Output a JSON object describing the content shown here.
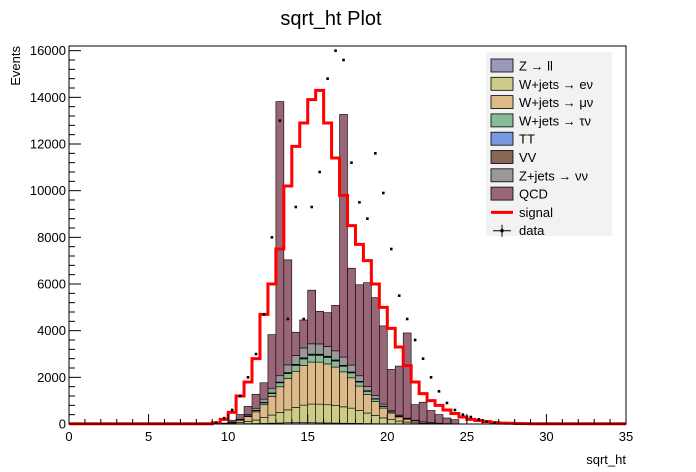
{
  "chart_data": {
    "type": "stacked-histogram",
    "title": "sqrt_ht Plot",
    "xlabel": "sqrt_ht",
    "ylabel": "Events",
    "xlim": [
      0,
      35
    ],
    "ylim": [
      0,
      16200
    ],
    "x_ticks": [
      0,
      5,
      10,
      15,
      20,
      25,
      30,
      35
    ],
    "y_ticks": [
      0,
      2000,
      4000,
      6000,
      8000,
      10000,
      12000,
      14000,
      16000
    ],
    "bin_edges_start": 0,
    "bin_width": 0.5,
    "legend_position": "top-right",
    "legend": [
      {
        "label": "Z → ll",
        "color": "#9999bb",
        "kind": "fill"
      },
      {
        "label": "W+jets → eν",
        "color": "#cccc88",
        "kind": "fill"
      },
      {
        "label": "W+jets → μν",
        "color": "#ddbb88",
        "kind": "fill"
      },
      {
        "label": "W+jets → τν",
        "color": "#88bb99",
        "kind": "fill"
      },
      {
        "label": "TT",
        "color": "#7799dd",
        "kind": "fill"
      },
      {
        "label": "VV",
        "color": "#886655",
        "kind": "fill"
      },
      {
        "label": "Z+jets → νν",
        "color": "#999999",
        "kind": "fill"
      },
      {
        "label": "QCD",
        "color": "#996677",
        "kind": "fill"
      },
      {
        "label": "signal",
        "color": "#ff0000",
        "kind": "line"
      },
      {
        "label": "data",
        "color": "#000000",
        "kind": "marker"
      }
    ],
    "series": [
      {
        "name": "Z → ll",
        "color": "#9999bb",
        "x_start": 9.0,
        "values": [
          0,
          0,
          5,
          10,
          15,
          20,
          25,
          35,
          45,
          55,
          60,
          60,
          55,
          50,
          45,
          40,
          35,
          30,
          25,
          20,
          15,
          10,
          8,
          5,
          3,
          2
        ]
      },
      {
        "name": "W+jets → eν",
        "color": "#cccc88",
        "x_start": 9.0,
        "values": [
          0,
          5,
          20,
          50,
          100,
          150,
          250,
          350,
          450,
          550,
          650,
          750,
          800,
          800,
          780,
          750,
          700,
          650,
          550,
          450,
          350,
          250,
          180,
          120,
          80,
          50,
          30,
          20,
          10,
          5,
          3
        ]
      },
      {
        "name": "W+jets → μν",
        "color": "#ddbb88",
        "x_start": 9.0,
        "values": [
          0,
          10,
          40,
          100,
          200,
          350,
          550,
          800,
          1100,
          1350,
          1550,
          1700,
          1800,
          1800,
          1750,
          1650,
          1500,
          1300,
          1050,
          800,
          600,
          420,
          280,
          180,
          120,
          80,
          50,
          30,
          20,
          10,
          5
        ]
      },
      {
        "name": "W+jets → τν",
        "color": "#88bb99",
        "x_start": 9.0,
        "values": [
          0,
          2,
          5,
          15,
          30,
          50,
          80,
          120,
          170,
          210,
          250,
          280,
          290,
          290,
          280,
          260,
          240,
          210,
          170,
          130,
          100,
          70,
          50,
          30,
          20,
          10,
          5,
          3,
          2,
          1,
          0
        ]
      },
      {
        "name": "TT",
        "color": "#7799dd",
        "x_start": 9.0,
        "values": [
          0,
          0,
          2,
          4,
          6,
          10,
          14,
          18,
          22,
          26,
          30,
          32,
          34,
          34,
          32,
          30,
          28,
          25,
          22,
          18,
          14,
          10,
          7,
          5,
          3,
          2,
          1,
          1,
          0,
          0,
          0
        ]
      },
      {
        "name": "VV",
        "color": "#886655",
        "x_start": 9.0,
        "values": [
          0,
          0,
          1,
          2,
          3,
          5,
          7,
          9,
          11,
          13,
          15,
          16,
          17,
          17,
          16,
          15,
          14,
          12,
          10,
          8,
          6,
          4,
          3,
          2,
          1,
          1,
          0,
          0,
          0,
          0,
          0
        ]
      },
      {
        "name": "Z+jets → νν",
        "color": "#999999",
        "x_start": 9.0,
        "values": [
          0,
          3,
          10,
          25,
          50,
          90,
          140,
          200,
          270,
          330,
          380,
          420,
          440,
          440,
          420,
          390,
          350,
          300,
          240,
          180,
          130,
          90,
          60,
          40,
          25,
          15,
          8,
          5,
          3,
          2,
          1
        ]
      },
      {
        "name": "QCD",
        "color": "#996677",
        "x_start": 9.0,
        "values": [
          0,
          20,
          80,
          200,
          350,
          600,
          700,
          2300,
          11750,
          4500,
          1000,
          1200,
          2300,
          1400,
          1450,
          1950,
          10400,
          4150,
          3900,
          4450,
          4200,
          3350,
          1750,
          2100,
          3650,
          670,
          840,
          520,
          370,
          240,
          180
        ]
      }
    ],
    "signal": {
      "name": "signal",
      "color": "#ff0000",
      "x_start": 0,
      "values": [
        10,
        10,
        10,
        10,
        10,
        10,
        10,
        10,
        10,
        10,
        10,
        10,
        10,
        10,
        10,
        10,
        10,
        10,
        50,
        200,
        500,
        1200,
        1800,
        2800,
        4700,
        6000,
        7500,
        10200,
        11900,
        12900,
        13900,
        14300,
        12900,
        11400,
        9800,
        8500,
        7700,
        7000,
        6000,
        5000,
        4100,
        3300,
        2500,
        1800,
        1300,
        1000,
        800,
        600,
        450,
        300,
        200,
        150,
        100,
        60,
        40,
        30,
        20,
        15,
        10,
        10,
        10,
        10,
        10,
        10,
        10,
        10,
        10,
        10,
        10,
        10
      ]
    },
    "data": {
      "name": "data",
      "color": "#000000",
      "x_start": 9.0,
      "values": [
        60,
        250,
        600,
        1200,
        2000,
        3000,
        4700,
        8000,
        13000,
        4500,
        9300,
        4500,
        9300,
        10800,
        14800,
        16000,
        15600,
        11200,
        9500,
        8800,
        11600,
        9900,
        7500,
        5500,
        4500,
        3600,
        2800,
        2000,
        1400,
        900,
        600,
        400,
        300,
        200,
        100,
        50
      ]
    }
  }
}
